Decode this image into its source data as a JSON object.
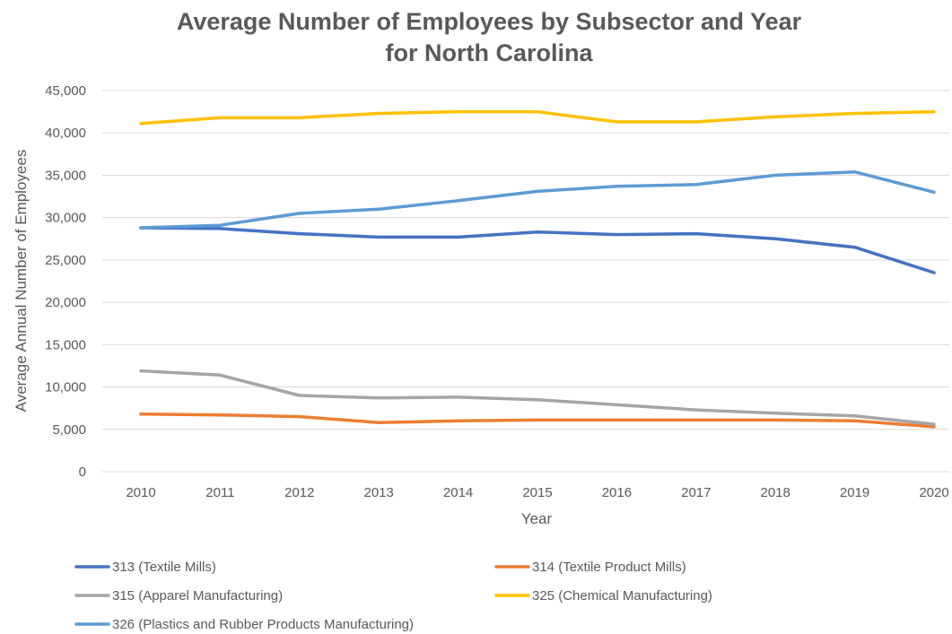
{
  "chart_data": {
    "type": "line",
    "title_lines": [
      "Average Number of Employees by Subsector and Year",
      "for North Carolina"
    ],
    "xlabel": "Year",
    "ylabel": "Average Annual Number of Employees",
    "categories": [
      "2010",
      "2011",
      "2012",
      "2013",
      "2014",
      "2015",
      "2016",
      "2017",
      "2018",
      "2019",
      "2020"
    ],
    "ylim": [
      0,
      45000
    ],
    "yticks": [
      0,
      5000,
      10000,
      15000,
      20000,
      25000,
      30000,
      35000,
      40000,
      45000
    ],
    "ytick_labels": [
      "0",
      "5,000",
      "10,000",
      "15,000",
      "20,000",
      "25,000",
      "30,000",
      "35,000",
      "40,000",
      "45,000"
    ],
    "grid": true,
    "legend_position": "bottom",
    "series": [
      {
        "name": "313 (Textile Mills)",
        "color": "#4472c4",
        "values": [
          28800,
          28700,
          28100,
          27700,
          27700,
          28300,
          28000,
          28100,
          27500,
          26500,
          23500
        ]
      },
      {
        "name": "314 (Textile Product Mills)",
        "color": "#ed7d31",
        "values": [
          6800,
          6700,
          6500,
          5800,
          6000,
          6100,
          6100,
          6100,
          6100,
          6000,
          5300
        ]
      },
      {
        "name": "315 (Apparel Manufacturing)",
        "color": "#a5a5a5",
        "values": [
          11900,
          11400,
          9000,
          8700,
          8800,
          8500,
          7900,
          7300,
          6900,
          6600,
          5600
        ]
      },
      {
        "name": "325 (Chemical Manufacturing)",
        "color": "#ffc000",
        "values": [
          41100,
          41800,
          41800,
          42300,
          42500,
          42500,
          41300,
          41300,
          41900,
          42300,
          42500
        ]
      },
      {
        "name": "326 (Plastics and Rubber Products Manufacturing)",
        "color": "#5b9bd5",
        "values": [
          28800,
          29100,
          30500,
          31000,
          32000,
          33100,
          33700,
          33900,
          35000,
          35400,
          33000
        ]
      }
    ]
  }
}
